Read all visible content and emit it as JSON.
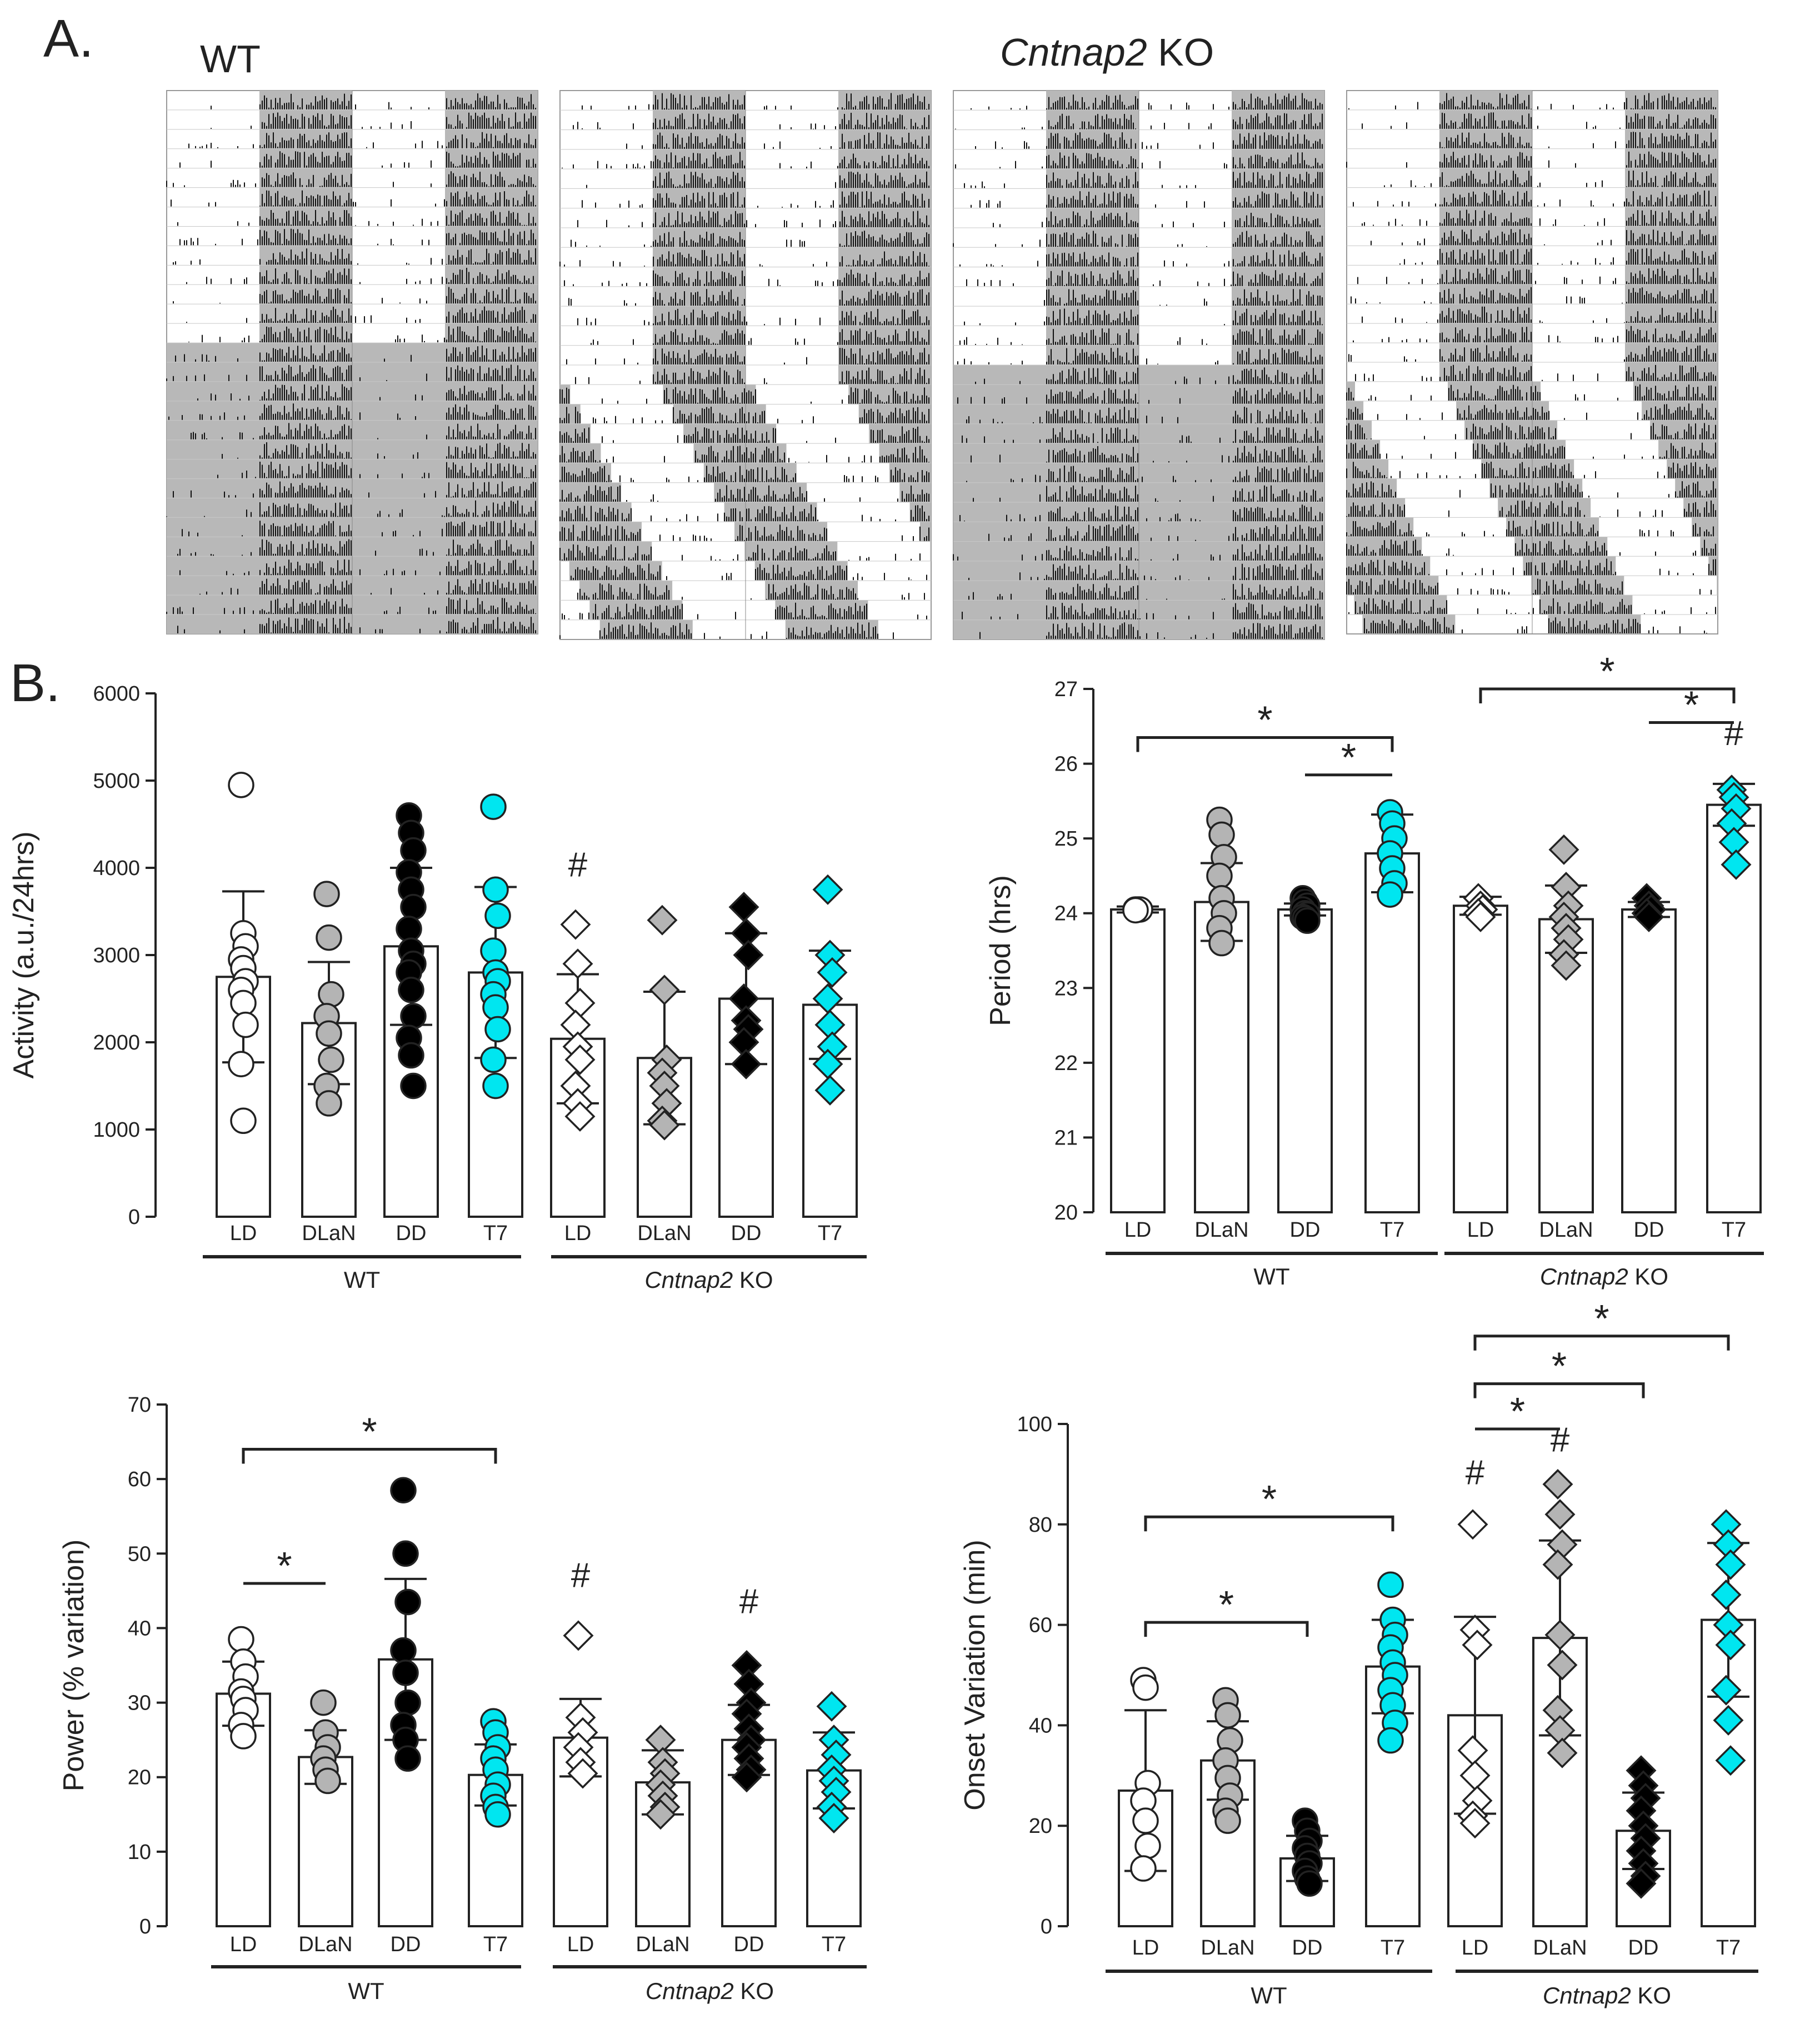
{
  "panel_a": {
    "label": "A.",
    "wt_label": "WT",
    "ko_gene": "Cntnap2",
    "ko_suffix": " KO",
    "actograms": [
      {
        "name": "wt-actogram",
        "condition": "LD then DD, entrained"
      },
      {
        "name": "ko-actogram-1",
        "condition": "LD then T7"
      },
      {
        "name": "ko-actogram-2",
        "condition": "LD then DD"
      },
      {
        "name": "ko-actogram-3",
        "condition": "LD then T7"
      }
    ]
  },
  "panel_b": {
    "label": "B."
  },
  "colors": {
    "LD": "#ffffff",
    "DLaN": "#b4b4b4",
    "DD": "#000000",
    "T7": "#00e6f0",
    "shade": "#b8b8b8",
    "ink": "#222222"
  },
  "groups": [
    {
      "label": "WT",
      "italic": false
    },
    {
      "label": "Cntnap2",
      "suffix": " KO",
      "italic": true
    }
  ],
  "chart_data": [
    {
      "name": "activity",
      "type": "bar",
      "ylabel": "Activity (a.u./24hrs)",
      "ylim": [
        0,
        6000
      ],
      "yticks": [
        0,
        1000,
        2000,
        3000,
        4000,
        5000,
        6000
      ],
      "categories": [
        "LD",
        "DLaN",
        "DD",
        "T7",
        "LD",
        "DLaN",
        "DD",
        "T7"
      ],
      "means": [
        2750,
        2220,
        3100,
        2800,
        2040,
        1820,
        2500,
        2430
      ],
      "sd": [
        980,
        700,
        900,
        980,
        740,
        760,
        750,
        620
      ],
      "points": [
        [
          4950,
          3250,
          3100,
          2950,
          2850,
          2700,
          2600,
          2450,
          2200,
          1750,
          1100
        ],
        [
          3700,
          3200,
          2550,
          2300,
          2100,
          1800,
          1500,
          1300
        ],
        [
          4600,
          4400,
          4200,
          3950,
          3750,
          3550,
          3300,
          3050,
          2900,
          2800,
          2600,
          2300,
          2050,
          1850,
          1500
        ],
        [
          4700,
          3750,
          3450,
          3050,
          2800,
          2700,
          2550,
          2400,
          2150,
          1800,
          1500
        ],
        [
          3350,
          2900,
          2450,
          2200,
          1950,
          1800,
          1500,
          1300,
          1150
        ],
        [
          3400,
          2600,
          1800,
          1650,
          1500,
          1300,
          1100,
          1050
        ],
        [
          3550,
          3250,
          3000,
          2500,
          2250,
          2150,
          2000,
          1750
        ],
        [
          3750,
          3000,
          2800,
          2500,
          2200,
          1950,
          1750,
          1450
        ]
      ],
      "annotations": [
        {
          "text": "#",
          "bar": 4,
          "value": 3900
        }
      ],
      "brackets": []
    },
    {
      "name": "period",
      "type": "bar",
      "ylabel": "Period (hrs)",
      "ylim": [
        20,
        27
      ],
      "yticks": [
        20,
        21,
        22,
        23,
        24,
        25,
        26,
        27
      ],
      "categories": [
        "LD",
        "DLaN",
        "DD",
        "T7",
        "LD",
        "DLaN",
        "DD",
        "T7"
      ],
      "means": [
        24.05,
        24.15,
        24.05,
        24.8,
        24.1,
        23.92,
        24.05,
        25.45
      ],
      "sd": [
        0.04,
        0.52,
        0.08,
        0.52,
        0.12,
        0.45,
        0.1,
        0.28
      ],
      "points": [
        [
          24.05,
          24.05,
          24.05,
          24.04
        ],
        [
          25.25,
          25.05,
          24.75,
          24.5,
          24.2,
          24.0,
          23.8,
          23.6
        ],
        [
          24.2,
          24.15,
          24.1,
          24.05,
          24.0,
          23.98,
          23.95,
          23.93,
          23.9
        ],
        [
          25.35,
          25.2,
          25.0,
          24.8,
          24.6,
          24.4,
          24.25
        ],
        [
          24.2,
          24.1,
          24.05,
          24.0,
          23.95
        ],
        [
          24.85,
          24.35,
          24.1,
          23.95,
          23.8,
          23.65,
          23.45,
          23.3
        ],
        [
          24.2,
          24.1,
          24.05,
          24.0,
          23.95
        ],
        [
          25.65,
          25.55,
          25.4,
          25.2,
          24.95,
          24.65
        ]
      ],
      "annotations": [
        {
          "text": "#",
          "bar": 7,
          "value": 26.25
        }
      ],
      "brackets": [
        {
          "from": 0,
          "to": 3,
          "value": 26.35,
          "drop": true
        },
        {
          "from": 2,
          "to": 3,
          "value": 25.85,
          "drop": false
        },
        {
          "from": 4,
          "to": 7,
          "value": 27.0,
          "drop": true
        },
        {
          "from": 6,
          "to": 7,
          "value": 26.55,
          "drop": false
        }
      ]
    },
    {
      "name": "power",
      "type": "bar",
      "ylabel": "Power (% variation)",
      "ylim": [
        0,
        70
      ],
      "yticks": [
        0,
        10,
        20,
        30,
        40,
        50,
        60,
        70
      ],
      "categories": [
        "LD",
        "DLaN",
        "DD",
        "T7",
        "LD",
        "DLaN",
        "DD",
        "T7"
      ],
      "means": [
        31.2,
        22.7,
        35.8,
        20.3,
        25.3,
        19.3,
        25.0,
        20.9
      ],
      "sd": [
        4.3,
        3.6,
        10.8,
        4.1,
        5.2,
        4.3,
        4.7,
        5.1
      ],
      "points": [
        [
          38.5,
          35.5,
          33.5,
          31.5,
          30.5,
          29.0,
          27.0,
          25.5
        ],
        [
          30.0,
          26.0,
          24.0,
          22.5,
          21.0,
          19.5
        ],
        [
          58.5,
          50.0,
          43.5,
          37.0,
          34.0,
          30.0,
          27.0,
          25.0,
          22.5
        ],
        [
          27.5,
          26.0,
          24.0,
          22.5,
          21.0,
          19.0,
          17.5,
          16.0,
          15.0
        ],
        [
          39.0,
          28.0,
          26.0,
          24.0,
          22.0,
          20.5
        ],
        [
          25.0,
          22.0,
          20.5,
          19.0,
          17.5,
          16.0,
          15.0
        ],
        [
          35.0,
          32.5,
          30.0,
          28.5,
          26.5,
          25.0,
          24.0,
          22.5,
          21.0,
          20.0
        ],
        [
          29.5,
          25.0,
          23.0,
          21.0,
          19.5,
          18.0,
          16.0,
          14.5
        ]
      ],
      "annotations": [
        {
          "text": "#",
          "bar": 4,
          "value": 45.5
        },
        {
          "text": "#",
          "bar": 6,
          "value": 42.0
        }
      ],
      "brackets": [
        {
          "from": 0,
          "to": 1,
          "value": 46.0,
          "drop": false
        },
        {
          "from": 0,
          "to": 3,
          "value": 64.0,
          "drop": true
        }
      ]
    },
    {
      "name": "onset-variation",
      "type": "bar",
      "ylabel": "Onset Variation (min)",
      "ylim": [
        0,
        100
      ],
      "yticks": [
        0,
        20,
        40,
        60,
        80,
        100
      ],
      "categories": [
        "LD",
        "DLaN",
        "DD",
        "T7",
        "LD",
        "DLaN",
        "DD",
        "T7"
      ],
      "means": [
        27.0,
        33.0,
        13.5,
        51.7,
        42.0,
        57.4,
        19.0,
        61.0
      ],
      "sd": [
        16.0,
        7.8,
        4.5,
        9.3,
        19.6,
        19.4,
        7.6,
        15.3
      ],
      "points": [
        [
          49.0,
          47.5,
          28.5,
          25.0,
          21.0,
          16.0,
          11.5
        ],
        [
          45.0,
          42.0,
          37.0,
          33.0,
          29.5,
          26.0,
          23.0,
          21.0
        ],
        [
          21.0,
          19.0,
          17.0,
          15.5,
          14.0,
          12.5,
          11.0,
          9.5,
          8.5
        ],
        [
          68.0,
          61.0,
          58.0,
          55.5,
          52.5,
          50.0,
          47.0,
          44.0,
          40.5,
          37.0
        ],
        [
          80.0,
          59.0,
          56.0,
          35.0,
          30.0,
          25.0,
          22.0,
          20.5
        ],
        [
          88.0,
          82.0,
          76.0,
          72.0,
          58.0,
          52.0,
          43.0,
          39.0,
          34.5
        ],
        [
          31.0,
          28.0,
          25.5,
          23.0,
          20.0,
          17.5,
          15.0,
          12.5,
          10.0,
          8.5
        ],
        [
          80.0,
          76.0,
          72.0,
          66.0,
          60.0,
          56.0,
          47.0,
          41.0,
          33.0
        ]
      ],
      "annotations": [
        {
          "text": "#",
          "bar": 4,
          "value": 88.0
        },
        {
          "text": "#",
          "bar": 5,
          "value": 94.5
        }
      ],
      "brackets": [
        {
          "from": 0,
          "to": 2,
          "value": 60.5,
          "drop": true
        },
        {
          "from": 0,
          "to": 3,
          "value": 81.5,
          "drop": true
        },
        {
          "from": 4,
          "to": 5,
          "value": 99.0,
          "drop": false
        },
        {
          "from": 4,
          "to": 6,
          "value": 108.0,
          "drop": true
        },
        {
          "from": 4,
          "to": 7,
          "value": 117.5,
          "drop": true
        }
      ]
    }
  ]
}
